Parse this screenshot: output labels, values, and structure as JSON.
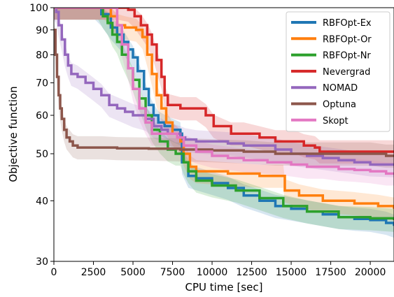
{
  "chart_data": {
    "type": "line",
    "xlabel": "CPU time [sec]",
    "ylabel": "Objective function",
    "xlim": [
      0,
      21500
    ],
    "ylim": [
      30,
      100
    ],
    "yscale": "log",
    "xticks": [
      0,
      2500,
      5000,
      7500,
      10000,
      12500,
      15000,
      17500,
      20000
    ],
    "yticks": [
      30,
      40,
      50,
      60,
      70,
      80,
      90,
      100
    ],
    "legend_position": "top-right",
    "series": [
      {
        "name": "RBFOpt-Ex",
        "color": "#1f77b4",
        "points": [
          [
            0,
            100
          ],
          [
            2600,
            100
          ],
          [
            3000,
            97
          ],
          [
            3600,
            91
          ],
          [
            4000,
            88
          ],
          [
            4400,
            85
          ],
          [
            4700,
            82
          ],
          [
            5000,
            79
          ],
          [
            5300,
            74
          ],
          [
            5700,
            68
          ],
          [
            6000,
            63
          ],
          [
            6300,
            60
          ],
          [
            6600,
            58
          ],
          [
            7000,
            57
          ],
          [
            7500,
            56
          ],
          [
            8000,
            55
          ],
          [
            8100,
            48
          ],
          [
            8500,
            45
          ],
          [
            9000,
            44.5
          ],
          [
            10000,
            43.5
          ],
          [
            11000,
            42.5
          ],
          [
            12000,
            41
          ],
          [
            13000,
            40
          ],
          [
            14000,
            39
          ],
          [
            15000,
            38.5
          ],
          [
            16000,
            38
          ],
          [
            17000,
            37.5
          ],
          [
            18000,
            37
          ],
          [
            19000,
            36.7
          ],
          [
            20000,
            36.5
          ],
          [
            21000,
            36
          ],
          [
            21500,
            35.5
          ]
        ]
      },
      {
        "name": "RBFOpt-Or",
        "color": "#ff7f0e",
        "points": [
          [
            0,
            100
          ],
          [
            3200,
            100
          ],
          [
            3600,
            96
          ],
          [
            4000,
            92
          ],
          [
            4500,
            91
          ],
          [
            5200,
            90
          ],
          [
            5600,
            87
          ],
          [
            5900,
            80
          ],
          [
            6200,
            73
          ],
          [
            6500,
            66
          ],
          [
            6800,
            62
          ],
          [
            7100,
            58
          ],
          [
            7500,
            55
          ],
          [
            8000,
            53
          ],
          [
            8200,
            50
          ],
          [
            8600,
            47
          ],
          [
            9000,
            46
          ],
          [
            11000,
            45.5
          ],
          [
            13000,
            45
          ],
          [
            14500,
            45
          ],
          [
            14600,
            42
          ],
          [
            15500,
            41
          ],
          [
            17000,
            40
          ],
          [
            19000,
            39.5
          ],
          [
            20500,
            39
          ],
          [
            21500,
            38.5
          ]
        ]
      },
      {
        "name": "RBFOpt-Nr",
        "color": "#2ca02c",
        "points": [
          [
            0,
            100
          ],
          [
            2800,
            100
          ],
          [
            3100,
            96
          ],
          [
            3400,
            93
          ],
          [
            3700,
            88
          ],
          [
            4000,
            85
          ],
          [
            4300,
            80
          ],
          [
            4700,
            75
          ],
          [
            5000,
            71
          ],
          [
            5400,
            65
          ],
          [
            5800,
            60
          ],
          [
            6200,
            56
          ],
          [
            6700,
            53
          ],
          [
            7200,
            51
          ],
          [
            7700,
            50
          ],
          [
            8000,
            50
          ],
          [
            8200,
            48
          ],
          [
            8500,
            46
          ],
          [
            9000,
            44
          ],
          [
            10000,
            43
          ],
          [
            11500,
            42
          ],
          [
            13000,
            40.5
          ],
          [
            14500,
            39
          ],
          [
            16000,
            38
          ],
          [
            18000,
            37
          ],
          [
            20000,
            36.8
          ],
          [
            21500,
            36.5
          ]
        ]
      },
      {
        "name": "Nevergrad",
        "color": "#d62728",
        "points": [
          [
            0,
            100
          ],
          [
            4000,
            100
          ],
          [
            4700,
            99
          ],
          [
            5100,
            96
          ],
          [
            5500,
            92
          ],
          [
            5900,
            88
          ],
          [
            6200,
            84
          ],
          [
            6500,
            78
          ],
          [
            6800,
            72
          ],
          [
            7000,
            66
          ],
          [
            7200,
            63
          ],
          [
            8000,
            62
          ],
          [
            9000,
            62
          ],
          [
            9600,
            60
          ],
          [
            10100,
            57
          ],
          [
            11200,
            55
          ],
          [
            12000,
            55
          ],
          [
            13000,
            54
          ],
          [
            14000,
            53
          ],
          [
            15200,
            53
          ],
          [
            15800,
            52
          ],
          [
            16500,
            51.5
          ],
          [
            16800,
            50.5
          ],
          [
            18000,
            50.5
          ],
          [
            21500,
            50.5
          ]
        ]
      },
      {
        "name": "NOMAD",
        "color": "#9467bd",
        "points": [
          [
            0,
            100
          ],
          [
            150,
            98
          ],
          [
            300,
            92
          ],
          [
            500,
            86
          ],
          [
            700,
            80
          ],
          [
            900,
            76
          ],
          [
            1100,
            73
          ],
          [
            1500,
            72
          ],
          [
            2000,
            70
          ],
          [
            2500,
            68
          ],
          [
            3000,
            66
          ],
          [
            3500,
            63
          ],
          [
            4000,
            62
          ],
          [
            4500,
            61
          ],
          [
            5000,
            60
          ],
          [
            5800,
            59
          ],
          [
            6300,
            57
          ],
          [
            6800,
            56
          ],
          [
            7200,
            55
          ],
          [
            8000,
            54
          ],
          [
            8300,
            53.5
          ],
          [
            9000,
            53
          ],
          [
            11000,
            52.5
          ],
          [
            12000,
            52
          ],
          [
            14000,
            51
          ],
          [
            15000,
            50
          ],
          [
            16000,
            49.5
          ],
          [
            17000,
            49
          ],
          [
            18000,
            48.5
          ],
          [
            19000,
            48
          ],
          [
            20000,
            47.5
          ],
          [
            21500,
            47.3
          ]
        ]
      },
      {
        "name": "Optuna",
        "color": "#8c564b",
        "points": [
          [
            0,
            90
          ],
          [
            100,
            80
          ],
          [
            200,
            72
          ],
          [
            300,
            66
          ],
          [
            400,
            62
          ],
          [
            500,
            59
          ],
          [
            650,
            56
          ],
          [
            800,
            54
          ],
          [
            1000,
            53
          ],
          [
            1200,
            52
          ],
          [
            1500,
            51.5
          ],
          [
            3000,
            51.5
          ],
          [
            4000,
            51.3
          ],
          [
            6000,
            51.2
          ],
          [
            8000,
            51
          ],
          [
            10000,
            50.8
          ],
          [
            12000,
            50.5
          ],
          [
            14000,
            50
          ],
          [
            16000,
            50
          ],
          [
            18000,
            50
          ],
          [
            20000,
            50
          ],
          [
            21000,
            49.5
          ],
          [
            21500,
            49.5
          ]
        ]
      },
      {
        "name": "Skopt",
        "color": "#e377c2",
        "points": [
          [
            0,
            100
          ],
          [
            3600,
            100
          ],
          [
            4000,
            92
          ],
          [
            4300,
            84
          ],
          [
            4700,
            75
          ],
          [
            5000,
            68
          ],
          [
            5400,
            62
          ],
          [
            5800,
            58
          ],
          [
            6200,
            55
          ],
          [
            7000,
            55
          ],
          [
            7800,
            54
          ],
          [
            8200,
            52
          ],
          [
            9000,
            50.5
          ],
          [
            10000,
            49.5
          ],
          [
            11000,
            49
          ],
          [
            12000,
            48.5
          ],
          [
            13500,
            48
          ],
          [
            15000,
            47.5
          ],
          [
            16000,
            47
          ],
          [
            17000,
            47
          ],
          [
            18000,
            46.5
          ],
          [
            19000,
            46.3
          ],
          [
            20000,
            46
          ],
          [
            21000,
            45.5
          ],
          [
            21500,
            45.5
          ]
        ]
      }
    ]
  }
}
